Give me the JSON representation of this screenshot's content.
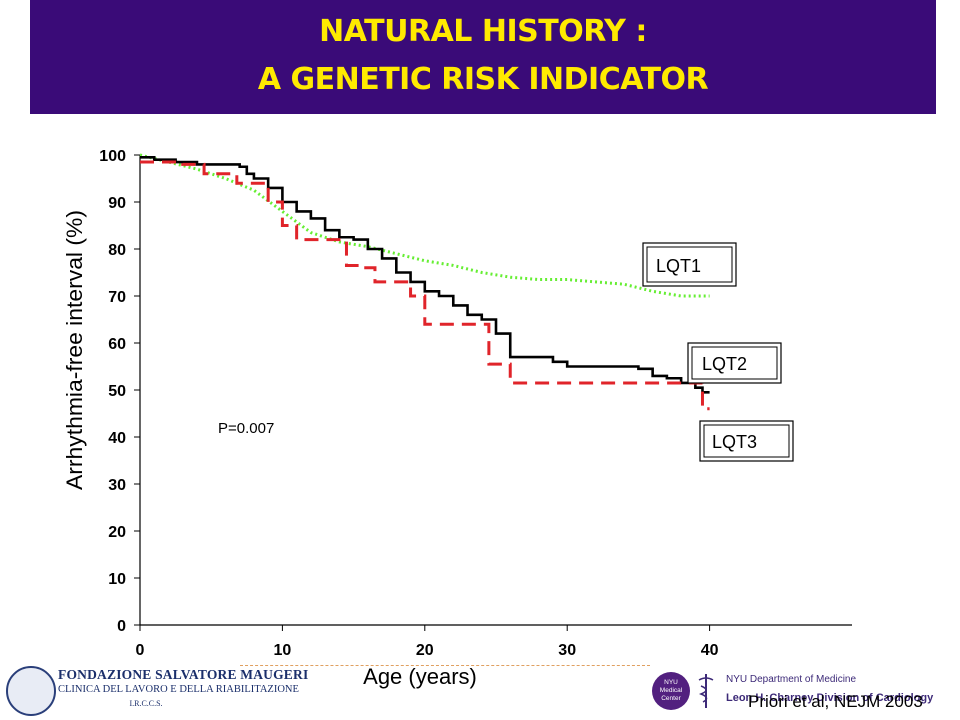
{
  "header": {
    "title_line1": "NATURAL HISTORY :",
    "title_line2": "A GENETIC RISK INDICATOR",
    "background_color": "#3a0b78",
    "title_color": "#ffea00"
  },
  "chart_data": {
    "type": "line",
    "xlabel": "Age (years)",
    "ylabel": "Arrhythmia-free interval (%)",
    "xlim": [
      0,
      50
    ],
    "ylim": [
      0,
      100
    ],
    "x_ticks": [
      "0",
      "10",
      "20",
      "30",
      "40"
    ],
    "y_ticks": [
      "0",
      "10",
      "20",
      "30",
      "40",
      "50",
      "60",
      "70",
      "80",
      "90",
      "100"
    ],
    "grid": false,
    "annotation": "P=0.007",
    "series": [
      {
        "name": "LQT1",
        "color": "#66ee33",
        "style": "dotted",
        "step": false,
        "points": [
          [
            0,
            100
          ],
          [
            2,
            98.5
          ],
          [
            4,
            97
          ],
          [
            6,
            95
          ],
          [
            8,
            92.5
          ],
          [
            10,
            88
          ],
          [
            12,
            83.5
          ],
          [
            14,
            81.5
          ],
          [
            16,
            80.5
          ],
          [
            18,
            79
          ],
          [
            20,
            77.5
          ],
          [
            22,
            76.5
          ],
          [
            24,
            75
          ],
          [
            26,
            74
          ],
          [
            28,
            73.5
          ],
          [
            30,
            73.5
          ],
          [
            32,
            73
          ],
          [
            34,
            72.5
          ],
          [
            36,
            71
          ],
          [
            38,
            70
          ],
          [
            40,
            70
          ]
        ]
      },
      {
        "name": "LQT2",
        "color": "#000000",
        "style": "solid",
        "step": true,
        "points": [
          [
            0,
            99.5
          ],
          [
            1,
            99
          ],
          [
            2.5,
            98.5
          ],
          [
            4,
            98
          ],
          [
            7,
            97.5
          ],
          [
            7.5,
            96
          ],
          [
            8,
            95
          ],
          [
            9,
            93
          ],
          [
            10,
            90
          ],
          [
            11,
            88
          ],
          [
            12,
            86.5
          ],
          [
            13,
            84
          ],
          [
            14,
            82.5
          ],
          [
            15,
            82
          ],
          [
            16,
            80
          ],
          [
            17,
            78
          ],
          [
            18,
            75
          ],
          [
            19,
            73
          ],
          [
            20,
            71
          ],
          [
            21,
            70
          ],
          [
            22,
            68
          ],
          [
            23,
            66
          ],
          [
            24,
            65
          ],
          [
            25,
            62
          ],
          [
            26,
            57
          ],
          [
            28,
            57
          ],
          [
            29,
            56
          ],
          [
            30,
            55
          ],
          [
            34,
            55
          ],
          [
            35,
            54.5
          ],
          [
            36,
            53
          ],
          [
            37,
            52.5
          ],
          [
            38,
            51.5
          ],
          [
            39,
            50.5
          ],
          [
            39.5,
            49.5
          ],
          [
            40,
            49.5
          ]
        ]
      },
      {
        "name": "LQT3",
        "color": "#e0242a",
        "style": "dashed",
        "step": true,
        "points": [
          [
            0,
            98.5
          ],
          [
            3,
            98
          ],
          [
            4.5,
            96
          ],
          [
            6.5,
            96
          ],
          [
            6.8,
            94
          ],
          [
            9,
            90
          ],
          [
            10,
            85
          ],
          [
            11,
            82
          ],
          [
            14,
            82
          ],
          [
            14.5,
            76.5
          ],
          [
            15.5,
            76
          ],
          [
            16.5,
            73
          ],
          [
            18,
            73
          ],
          [
            19,
            70
          ],
          [
            20,
            64
          ],
          [
            22,
            64
          ],
          [
            24,
            64
          ],
          [
            24.5,
            55.5
          ],
          [
            25,
            55.5
          ],
          [
            26,
            51.5
          ],
          [
            27,
            51.5
          ],
          [
            39,
            51.5
          ],
          [
            39.5,
            46
          ],
          [
            40,
            46
          ]
        ]
      }
    ]
  },
  "legend_boxes": {
    "lqt1": "LQT1",
    "lqt2": "LQT2",
    "lqt3": "LQT3"
  },
  "footer": {
    "foundation_name": "FONDAZIONE SALVATORE MAUGERI",
    "foundation_subtitle": "CLINICA DEL LAVORO E DELLA RIABILITAZIONE",
    "foundation_irccs": "I.R.C.C.S.",
    "nyu_logo_text": "NYU Medical Center",
    "nyu_department": "NYU Department of Medicine",
    "nyu_division": "Leon H. Charney Division of Cardiology",
    "citation": "Priori et al, NEJM 2003"
  }
}
